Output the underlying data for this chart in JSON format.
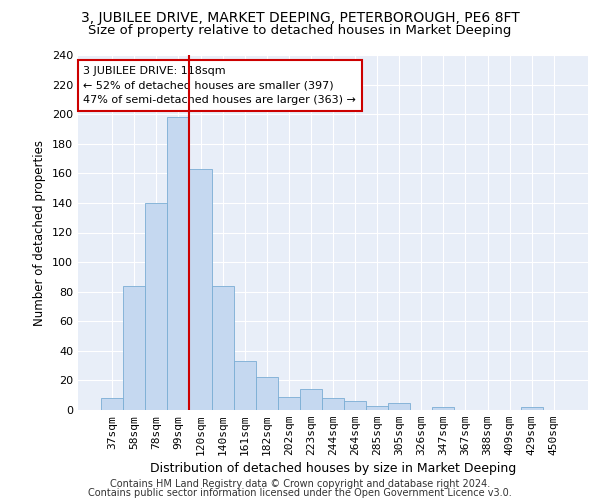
{
  "title1": "3, JUBILEE DRIVE, MARKET DEEPING, PETERBOROUGH, PE6 8FT",
  "title2": "Size of property relative to detached houses in Market Deeping",
  "xlabel": "Distribution of detached houses by size in Market Deeping",
  "ylabel": "Number of detached properties",
  "footnote1": "Contains HM Land Registry data © Crown copyright and database right 2024.",
  "footnote2": "Contains public sector information licensed under the Open Government Licence v3.0.",
  "categories": [
    "37sqm",
    "58sqm",
    "78sqm",
    "99sqm",
    "120sqm",
    "140sqm",
    "161sqm",
    "182sqm",
    "202sqm",
    "223sqm",
    "244sqm",
    "264sqm",
    "285sqm",
    "305sqm",
    "326sqm",
    "347sqm",
    "367sqm",
    "388sqm",
    "409sqm",
    "429sqm",
    "450sqm"
  ],
  "values": [
    8,
    84,
    140,
    198,
    163,
    84,
    33,
    22,
    9,
    14,
    8,
    6,
    3,
    5,
    0,
    2,
    0,
    0,
    0,
    2,
    0
  ],
  "bar_color": "#c5d8f0",
  "bar_edge_color": "#7aadd4",
  "background_color": "#e8eef8",
  "grid_color": "#ffffff",
  "vline_color": "#cc0000",
  "vline_x_index": 3.5,
  "annotation_text": "3 JUBILEE DRIVE: 118sqm\n← 52% of detached houses are smaller (397)\n47% of semi-detached houses are larger (363) →",
  "annotation_box_edge_color": "#cc0000",
  "ylim": [
    0,
    240
  ],
  "yticks": [
    0,
    20,
    40,
    60,
    80,
    100,
    120,
    140,
    160,
    180,
    200,
    220,
    240
  ],
  "title1_fontsize": 10,
  "title2_fontsize": 9.5,
  "xlabel_fontsize": 9,
  "ylabel_fontsize": 8.5,
  "tick_fontsize": 8,
  "annotation_fontsize": 8,
  "footnote_fontsize": 7
}
